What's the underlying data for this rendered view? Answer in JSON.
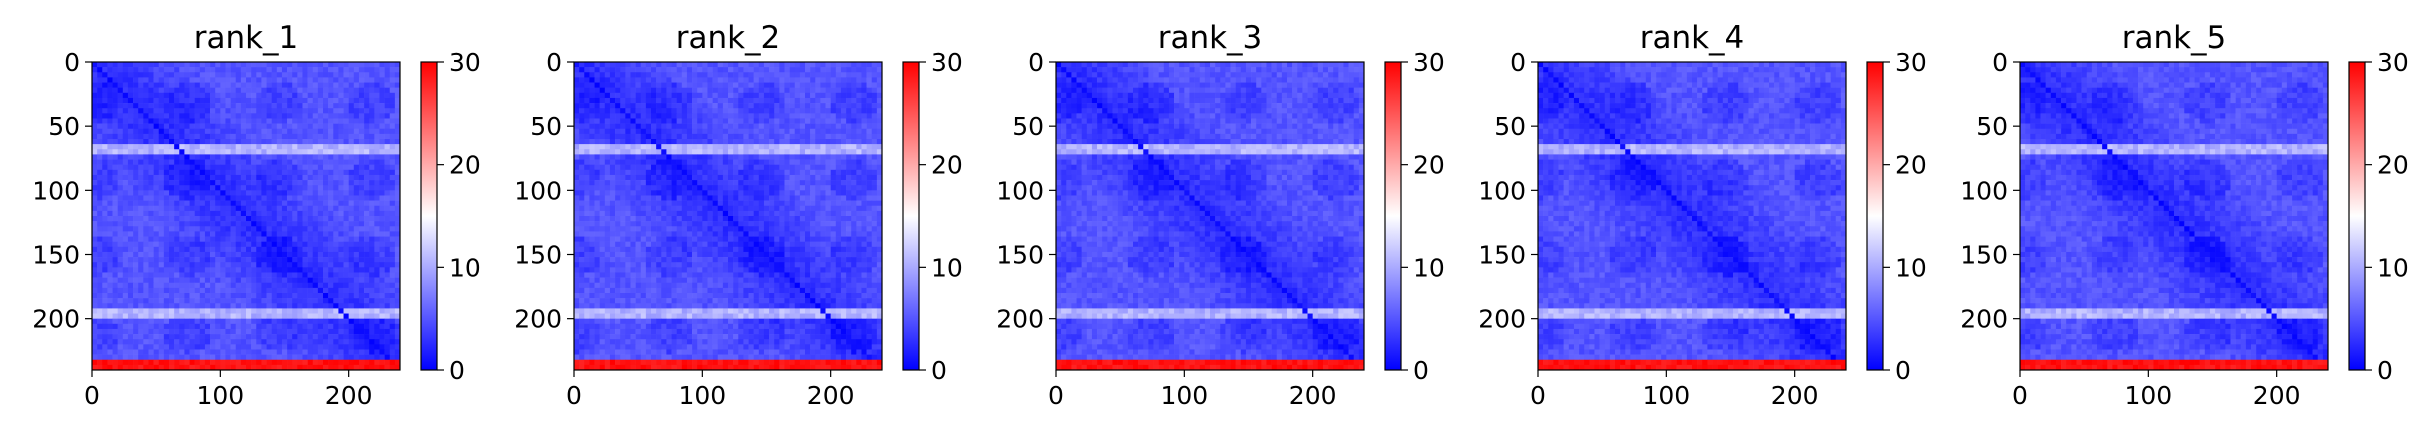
{
  "figure": {
    "panels": [
      "rank_1",
      "rank_2",
      "rank_3",
      "rank_4",
      "rank_5"
    ]
  },
  "chart_data": [
    {
      "type": "heatmap",
      "title": "rank_1",
      "xlabel": "",
      "ylabel": "",
      "x_ticks": [
        0,
        100,
        200
      ],
      "y_ticks": [
        0,
        50,
        100,
        150,
        200
      ],
      "xlim": [
        0,
        240
      ],
      "ylim": [
        240,
        0
      ],
      "colorbar": {
        "ticks": [
          0,
          10,
          20,
          30
        ],
        "range": [
          0,
          30
        ],
        "colormap": "bwr",
        "colors": [
          "#0000ff",
          "#ffffff",
          "#ff0000"
        ]
      },
      "size": 240,
      "values_summary": {
        "background": 5,
        "diagonal": 0,
        "horizontal_bands": [
          {
            "row": 67,
            "value": 12
          },
          {
            "row": 195,
            "value": 12
          }
        ],
        "bottom_rows": {
          "from_row": 230,
          "value": 28
        }
      }
    },
    {
      "type": "heatmap",
      "title": "rank_2",
      "xlabel": "",
      "ylabel": "",
      "x_ticks": [
        0,
        100,
        200
      ],
      "y_ticks": [
        0,
        50,
        100,
        150,
        200
      ],
      "xlim": [
        0,
        240
      ],
      "ylim": [
        240,
        0
      ],
      "colorbar": {
        "ticks": [
          0,
          10,
          20,
          30
        ],
        "range": [
          0,
          30
        ],
        "colormap": "bwr",
        "colors": [
          "#0000ff",
          "#ffffff",
          "#ff0000"
        ]
      },
      "size": 240,
      "values_summary": {
        "background": 5,
        "diagonal": 0,
        "horizontal_bands": [
          {
            "row": 67,
            "value": 12
          },
          {
            "row": 195,
            "value": 12
          }
        ],
        "bottom_rows": {
          "from_row": 230,
          "value": 28
        }
      }
    },
    {
      "type": "heatmap",
      "title": "rank_3",
      "xlabel": "",
      "ylabel": "",
      "x_ticks": [
        0,
        100,
        200
      ],
      "y_ticks": [
        0,
        50,
        100,
        150,
        200
      ],
      "xlim": [
        0,
        240
      ],
      "ylim": [
        240,
        0
      ],
      "colorbar": {
        "ticks": [
          0,
          10,
          20,
          30
        ],
        "range": [
          0,
          30
        ],
        "colormap": "bwr",
        "colors": [
          "#0000ff",
          "#ffffff",
          "#ff0000"
        ]
      },
      "size": 240,
      "values_summary": {
        "background": 5,
        "diagonal": 0,
        "horizontal_bands": [
          {
            "row": 67,
            "value": 12
          },
          {
            "row": 195,
            "value": 12
          }
        ],
        "bottom_rows": {
          "from_row": 230,
          "value": 28
        }
      }
    },
    {
      "type": "heatmap",
      "title": "rank_4",
      "xlabel": "",
      "ylabel": "",
      "x_ticks": [
        0,
        100,
        200
      ],
      "y_ticks": [
        0,
        50,
        100,
        150,
        200
      ],
      "xlim": [
        0,
        240
      ],
      "ylim": [
        240,
        0
      ],
      "colorbar": {
        "ticks": [
          0,
          10,
          20,
          30
        ],
        "range": [
          0,
          30
        ],
        "colormap": "bwr",
        "colors": [
          "#0000ff",
          "#ffffff",
          "#ff0000"
        ]
      },
      "size": 240,
      "values_summary": {
        "background": 5,
        "diagonal": 0,
        "horizontal_bands": [
          {
            "row": 67,
            "value": 12
          },
          {
            "row": 195,
            "value": 12
          }
        ],
        "bottom_rows": {
          "from_row": 230,
          "value": 28
        }
      }
    },
    {
      "type": "heatmap",
      "title": "rank_5",
      "xlabel": "",
      "ylabel": "",
      "x_ticks": [
        0,
        100,
        200
      ],
      "y_ticks": [
        0,
        50,
        100,
        150,
        200
      ],
      "xlim": [
        0,
        240
      ],
      "ylim": [
        240,
        0
      ],
      "colorbar": {
        "ticks": [
          0,
          10,
          20,
          30
        ],
        "range": [
          0,
          30
        ],
        "colormap": "bwr",
        "colors": [
          "#0000ff",
          "#ffffff",
          "#ff0000"
        ]
      },
      "size": 240,
      "values_summary": {
        "background": 5,
        "diagonal": 0,
        "horizontal_bands": [
          {
            "row": 67,
            "value": 12
          },
          {
            "row": 195,
            "value": 12
          }
        ],
        "bottom_rows": {
          "from_row": 230,
          "value": 28
        }
      }
    }
  ]
}
